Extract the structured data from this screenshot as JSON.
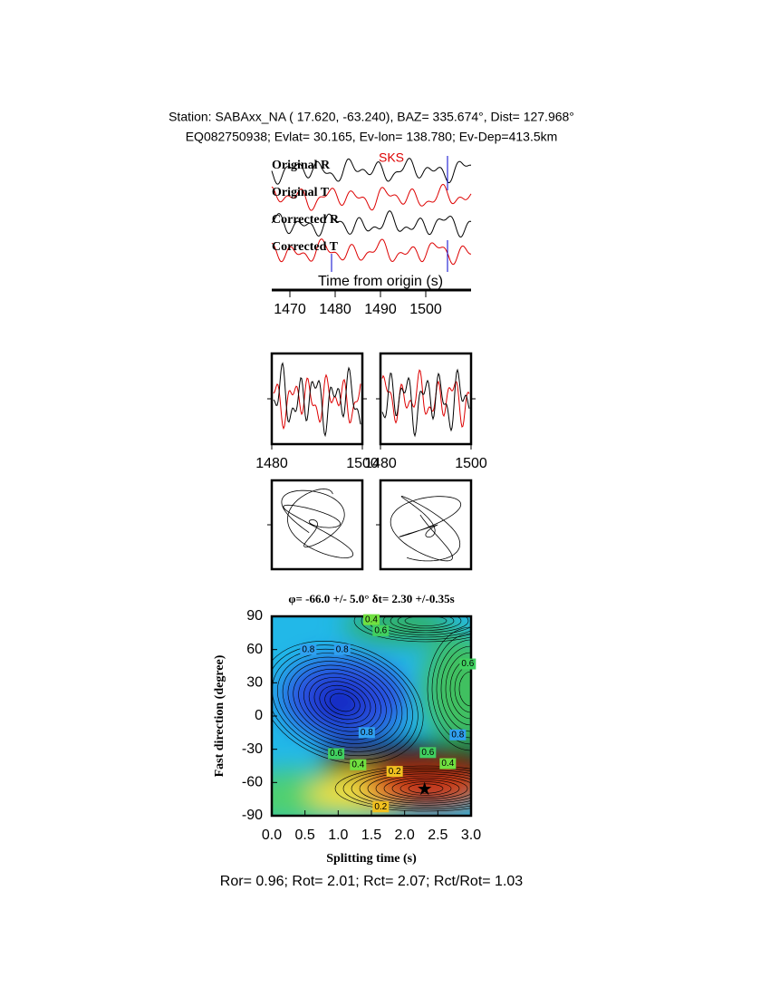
{
  "header": {
    "station": "Station: SABAxx_NA (  17.620,  -63.240), BAZ=  335.674°, Dist=  127.968°",
    "event": "EQ082750938; Evlat=  30.165, Ev-lon= 138.780; Ev-Dep=413.5km"
  },
  "chart_data": [
    {
      "type": "waveform",
      "phase": "SKS",
      "traces": [
        "Original R",
        "Original T",
        "Corrected R",
        "Corrected T"
      ],
      "xlabel": "Time from origin (s)",
      "xlim": [
        1466,
        1510
      ],
      "xticks": [
        1470,
        1480,
        1490,
        1500
      ]
    },
    {
      "type": "window",
      "xlim": [
        1480,
        1500
      ],
      "xticks": [
        1480,
        1500
      ]
    },
    {
      "type": "window",
      "xlim": [
        1480,
        1500
      ],
      "xticks": [
        1480,
        1500
      ]
    },
    {
      "type": "contour",
      "title": "φ= -66.0 +/- 5.0° δt= 2.30 +/-0.35s",
      "xlabel": "Splitting time (s)",
      "ylabel": "Fast direction (degree)",
      "xlim": [
        0,
        3
      ],
      "ylim": [
        -90,
        90
      ],
      "xticks": [
        {
          "value": 0,
          "label": "0.0"
        },
        0.5,
        {
          "value": 1,
          "label": "1.0"
        },
        1.5,
        {
          "value": 2,
          "label": "2.0"
        },
        2.5,
        {
          "value": 3,
          "label": "3.0"
        }
      ],
      "yticks": [
        -90,
        -60,
        -30,
        0,
        30,
        60,
        90
      ],
      "best": {
        "x": 2.3,
        "y": -66
      },
      "contour_labels": [
        {
          "x": 0.55,
          "y": 60,
          "value": 0.8
        },
        {
          "x": 1.06,
          "y": 60,
          "value": 0.8
        },
        {
          "x": 1.5,
          "y": 87,
          "value": 0.4
        },
        {
          "x": 1.64,
          "y": 77,
          "value": 0.6
        },
        {
          "x": 1.43,
          "y": -15,
          "value": 0.8
        },
        {
          "x": 0.97,
          "y": -34,
          "value": 0.6
        },
        {
          "x": 1.3,
          "y": -44,
          "value": 0.4
        },
        {
          "x": 1.85,
          "y": -50,
          "value": 0.2
        },
        {
          "x": 2.35,
          "y": -33,
          "value": 0.6
        },
        {
          "x": 2.65,
          "y": -43,
          "value": 0.4
        },
        {
          "x": 2.8,
          "y": -17,
          "value": 0.8
        },
        {
          "x": 2.95,
          "y": 47,
          "value": 0.6
        },
        {
          "x": 1.64,
          "y": -82,
          "value": 0.2
        }
      ]
    }
  ],
  "footer": "Ror= 0.96; Rot= 2.01; Rct= 2.07; Rct/Rot= 1.03"
}
